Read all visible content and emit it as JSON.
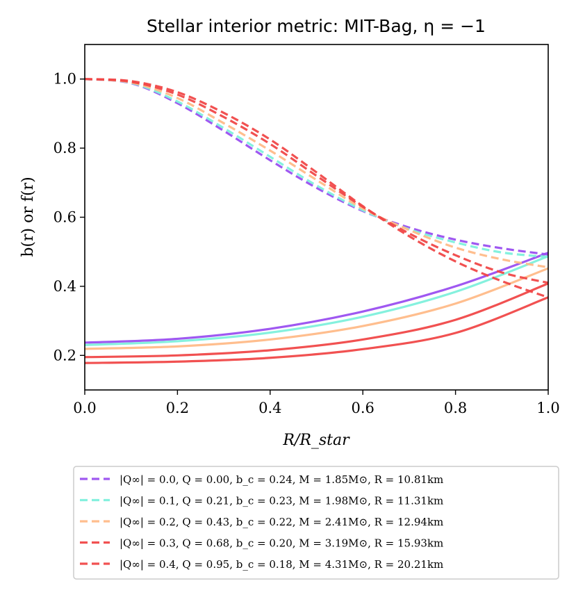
{
  "chart_data": {
    "type": "line",
    "title": "Stellar interior metric: MIT-Bag, η = −1",
    "xlabel": "R/R_star",
    "ylabel": "b(r) or f(r)",
    "xlim": [
      0.0,
      1.0
    ],
    "ylim": [
      0.1,
      1.1
    ],
    "xticks": [
      "0.0",
      "0.2",
      "0.4",
      "0.6",
      "0.8",
      "1.0"
    ],
    "yticks": [
      "0.2",
      "0.4",
      "0.6",
      "0.8",
      "1.0"
    ],
    "legend_position": "below",
    "series": [
      {
        "name": "|Q∞| = 0.0, Q = 0.00, b_c = 0.24, M = 1.85M⊙, R = 10.81km",
        "color": "#9a4ff0",
        "b_solid": {
          "x": [
            0,
            0.2,
            0.4,
            0.6,
            0.8,
            1.0
          ],
          "y": [
            0.237,
            0.248,
            0.277,
            0.327,
            0.4,
            0.497
          ]
        },
        "f_dashed": {
          "x": [
            0,
            0.1,
            0.2,
            0.3,
            0.4,
            0.5,
            0.6,
            0.7,
            0.8,
            0.9,
            1.0
          ],
          "y": [
            1.0,
            0.988,
            0.93,
            0.85,
            0.765,
            0.685,
            0.618,
            0.57,
            0.535,
            0.51,
            0.492
          ]
        }
      },
      {
        "name": "|Q∞| = 0.1, Q = 0.21, b_c = 0.23, M = 1.98M⊙, R = 11.31km",
        "color": "#7ef0dc",
        "b_solid": {
          "x": [
            0,
            0.2,
            0.4,
            0.6,
            0.8,
            1.0
          ],
          "y": [
            0.23,
            0.241,
            0.266,
            0.312,
            0.384,
            0.487
          ]
        },
        "f_dashed": {
          "x": [
            0,
            0.1,
            0.2,
            0.3,
            0.4,
            0.5,
            0.6,
            0.7,
            0.8,
            0.9,
            1.0
          ],
          "y": [
            1.0,
            0.989,
            0.935,
            0.858,
            0.775,
            0.692,
            0.62,
            0.565,
            0.527,
            0.498,
            0.485
          ]
        }
      },
      {
        "name": "|Q∞| = 0.2, Q = 0.43, b_c = 0.22, M = 2.41M⊙, R = 12.94km",
        "color": "#ffba88",
        "b_solid": {
          "x": [
            0,
            0.2,
            0.4,
            0.6,
            0.8,
            1.0
          ],
          "y": [
            0.219,
            0.226,
            0.246,
            0.285,
            0.35,
            0.452
          ]
        },
        "f_dashed": {
          "x": [
            0,
            0.1,
            0.2,
            0.3,
            0.4,
            0.5,
            0.6,
            0.7,
            0.8,
            0.9,
            1.0
          ],
          "y": [
            1.0,
            0.99,
            0.945,
            0.872,
            0.793,
            0.708,
            0.625,
            0.563,
            0.512,
            0.478,
            0.455
          ]
        }
      },
      {
        "name": "|Q∞| = 0.3, Q = 0.68, b_c = 0.20, M = 3.19M⊙, R = 15.93km",
        "color": "#f04848",
        "b_solid": {
          "x": [
            0,
            0.2,
            0.4,
            0.6,
            0.8,
            1.0
          ],
          "y": [
            0.195,
            0.2,
            0.215,
            0.246,
            0.303,
            0.408
          ]
        },
        "f_dashed": {
          "x": [
            0,
            0.1,
            0.2,
            0.3,
            0.4,
            0.5,
            0.6,
            0.7,
            0.8,
            0.9,
            1.0
          ],
          "y": [
            1.0,
            0.992,
            0.955,
            0.89,
            0.812,
            0.72,
            0.63,
            0.553,
            0.49,
            0.44,
            0.41
          ]
        }
      },
      {
        "name": "|Q∞| = 0.4, Q = 0.95, b_c = 0.18, M = 4.31M⊙, R = 20.21km",
        "color": "#f04848",
        "b_solid": {
          "x": [
            0,
            0.2,
            0.4,
            0.6,
            0.8,
            1.0
          ],
          "y": [
            0.178,
            0.182,
            0.193,
            0.218,
            0.265,
            0.368
          ]
        },
        "f_dashed": {
          "x": [
            0,
            0.1,
            0.2,
            0.3,
            0.4,
            0.5,
            0.6,
            0.7,
            0.8,
            0.9,
            1.0
          ],
          "y": [
            1.0,
            0.994,
            0.962,
            0.902,
            0.825,
            0.73,
            0.632,
            0.545,
            0.472,
            0.415,
            0.368
          ]
        }
      }
    ]
  }
}
